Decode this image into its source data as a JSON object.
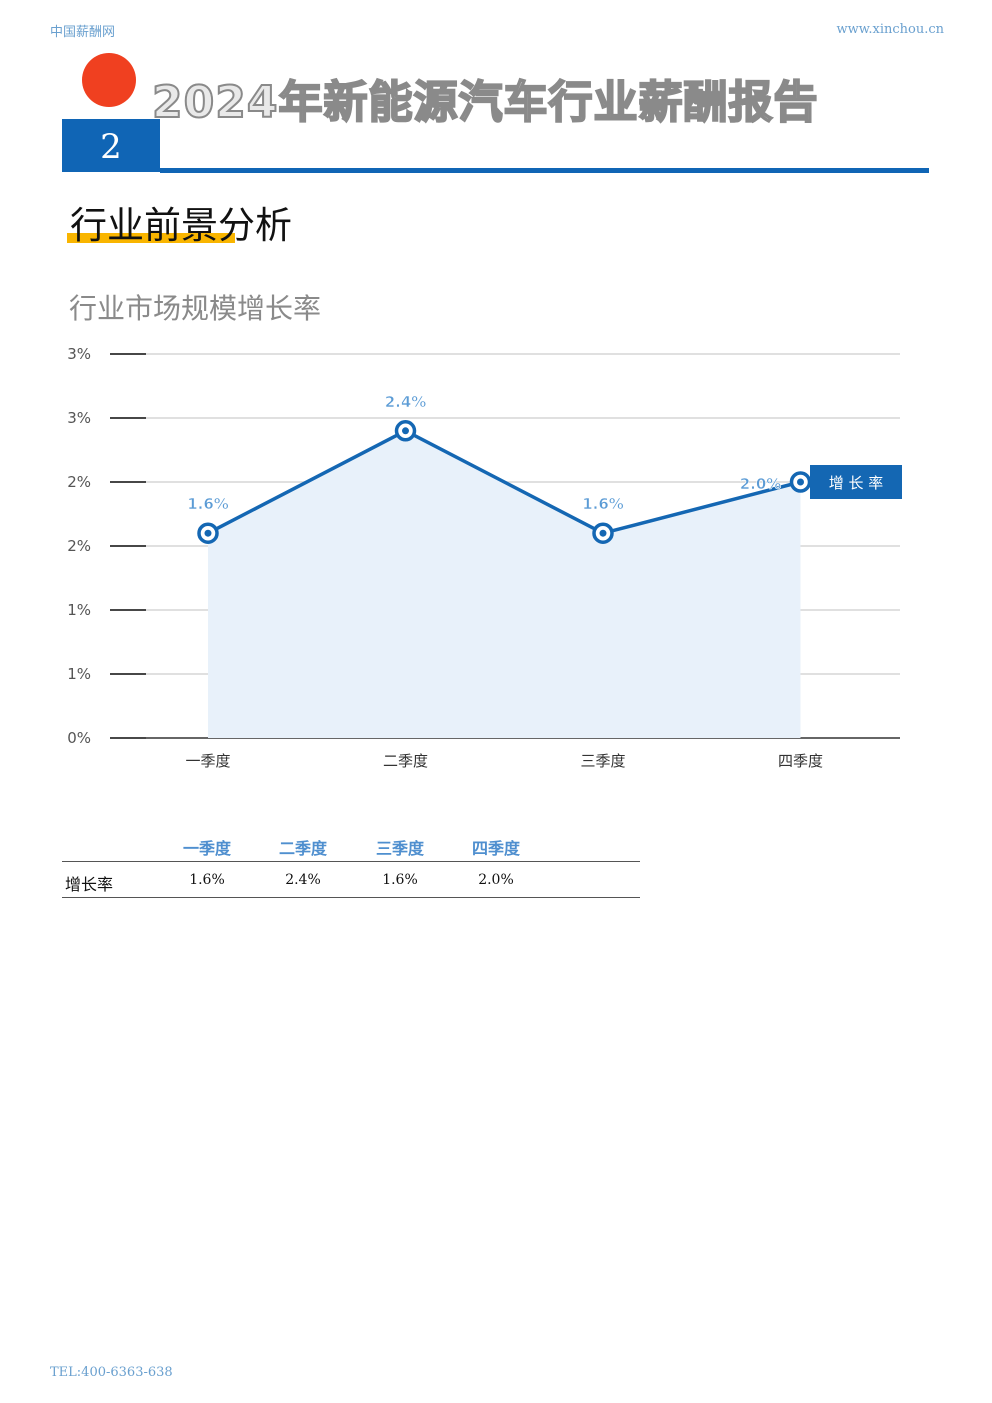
{
  "header": {
    "site": "中国薪酬网",
    "url": "www.xinchou.cn"
  },
  "report_title": "2024年新能源汽车行业薪酬报告",
  "section_number": "2",
  "section_title": "行业前景分析",
  "chart_title": "行业市场规模增长率",
  "chart_data": {
    "type": "line",
    "title": "行业市场规模增长率",
    "categories": [
      "一季度",
      "二季度",
      "三季度",
      "四季度"
    ],
    "series": [
      {
        "name": "增 长 率",
        "values": [
          1.6,
          2.4,
          1.6,
          2.0
        ],
        "labels": [
          "1.6%",
          "2.4%",
          "1.6%",
          "2.0%"
        ]
      }
    ],
    "y_ticks": [
      "0%",
      "1%",
      "1%",
      "2%",
      "2%",
      "3%",
      "3%"
    ],
    "ylim": [
      0,
      3.0
    ],
    "grid": true,
    "area_fill": true,
    "legend_position": "right of last point",
    "colors": {
      "line": "#1467b3",
      "fill": "#e8f1fa",
      "grid": "#d6d6d6",
      "label": "#5b9bd5"
    }
  },
  "table": {
    "headers": [
      "一季度",
      "二季度",
      "三季度",
      "四季度"
    ],
    "rows": [
      {
        "label": "增长率",
        "values": [
          "1.6%",
          "2.4%",
          "1.6%",
          "2.0%"
        ]
      }
    ]
  },
  "footer": {
    "tel": "TEL:400-6363-638"
  }
}
